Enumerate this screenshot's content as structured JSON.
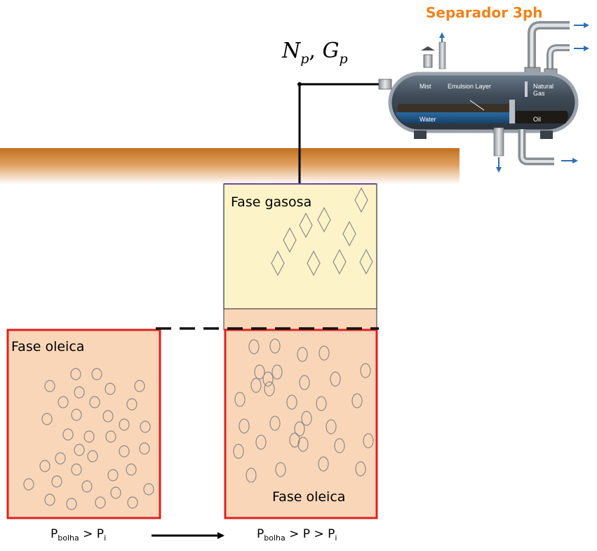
{
  "separator": {
    "title": "Separador 3ph",
    "mist_label": "Mist",
    "emulsion_label": "Emulsion Layer",
    "gas_label_1": "Natural",
    "gas_label_2": "Gas",
    "water_label": "Water",
    "oil_label": "Oil"
  },
  "production_label": {
    "n": "N",
    "n_sub": "p",
    "comma": ", ",
    "g": "G",
    "g_sub": "p"
  },
  "left_cell": {
    "phase_label": "Fase oleica",
    "condition_p1": "P",
    "condition_sub1": "bolha",
    "condition_mid": " > P",
    "condition_sub2": "i"
  },
  "right_cell": {
    "gas_phase_label": "Fase gasosa",
    "oil_phase_label": "Fase oleica",
    "condition_p1": "P",
    "condition_sub1": "bolha",
    "condition_mid": " > P > P",
    "condition_sub2": "i"
  },
  "colors": {
    "oil_fill": "#fad6b8",
    "gas_fill": "#fdf3c8",
    "border_red": "#e02020",
    "ground_brown": "#c87a2a",
    "title_orange": "#f0821e"
  }
}
